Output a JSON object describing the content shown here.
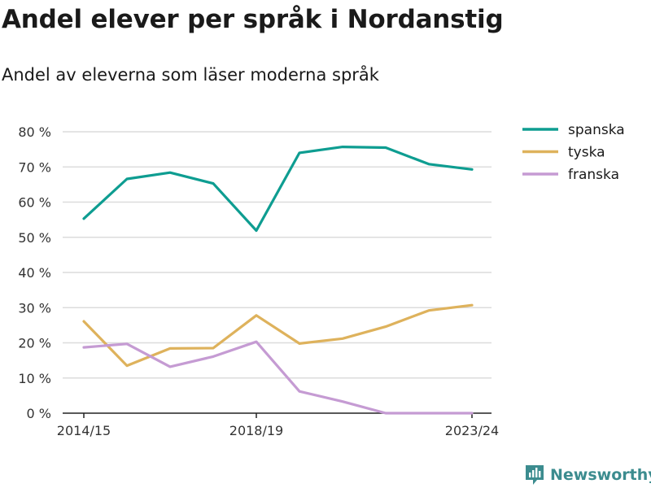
{
  "header": {
    "title": "Andel elever per språk i Nordanstig",
    "subtitle": "Andel av eleverna som läser moderna språk"
  },
  "brand": {
    "name": "Newsworthy",
    "icon": "newsworthy-logo-icon",
    "color": "#3c8c8f"
  },
  "chart_data": {
    "type": "line",
    "x": [
      "2014/15",
      "2015/16",
      "2016/17",
      "2017/18",
      "2018/19",
      "2019/20",
      "2020/21",
      "2021/22",
      "2022/23",
      "2023/24"
    ],
    "x_tick_labels": [
      "2014/15",
      "2018/19",
      "2023/24"
    ],
    "y_ticks": [
      0,
      10,
      20,
      30,
      40,
      50,
      60,
      70,
      80
    ],
    "y_tick_labels": [
      "0 %",
      "10 %",
      "20 %",
      "30 %",
      "40 %",
      "50 %",
      "60 %",
      "70 %",
      "80 %"
    ],
    "ylim": [
      0,
      80
    ],
    "grid": true,
    "legend_position": "top-right",
    "series": [
      {
        "name": "spanska",
        "color": "#0e9d91",
        "values": [
          55.3,
          66.6,
          68.4,
          65.3,
          51.9,
          74.0,
          75.7,
          75.5,
          70.8,
          69.3
        ]
      },
      {
        "name": "tyska",
        "color": "#deb25c",
        "values": [
          26.1,
          13.5,
          18.4,
          18.5,
          27.8,
          19.8,
          21.2,
          24.6,
          29.2,
          30.7
        ]
      },
      {
        "name": "franska",
        "color": "#c59bd3",
        "values": [
          18.7,
          19.7,
          13.2,
          16.1,
          20.3,
          6.2,
          3.3,
          0.0,
          0.0,
          0.0
        ]
      }
    ]
  }
}
